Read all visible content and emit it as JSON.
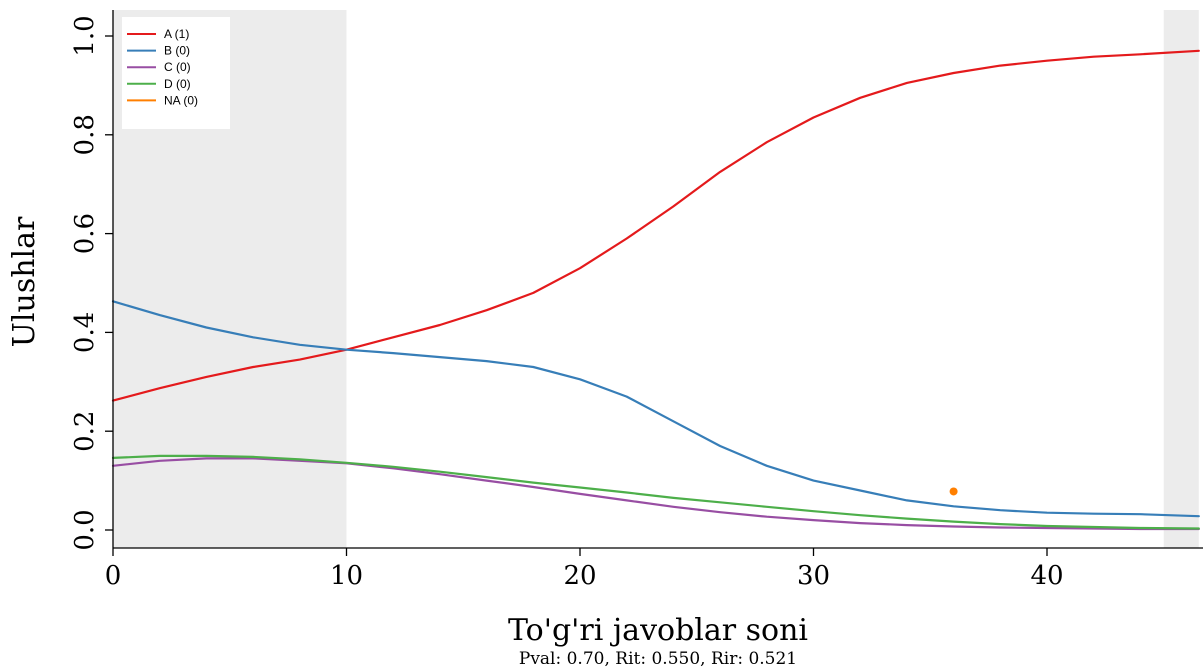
{
  "chart_data": {
    "type": "line",
    "xlabel": "To'g'ri javoblar soni",
    "ylabel": "Ulushlar",
    "subtitle": "Pval: 0.70, Rit: 0.550, Rir: 0.521",
    "xlim": [
      0,
      46.5
    ],
    "ylim": [
      -0.035,
      1.03
    ],
    "x_ticks": [
      0,
      10,
      20,
      30,
      40
    ],
    "y_ticks": [
      0.0,
      0.2,
      0.4,
      0.6,
      0.8,
      1.0
    ],
    "y_tick_labels": [
      "0.0",
      "0.2",
      "0.4",
      "0.6",
      "0.8",
      "1.0"
    ],
    "shaded_x_ranges": [
      [
        0,
        10
      ],
      [
        45,
        46.5
      ]
    ],
    "grid": false,
    "legend_position": "top-left",
    "x": [
      0,
      2,
      4,
      6,
      8,
      10,
      12,
      14,
      16,
      18,
      20,
      22,
      24,
      26,
      28,
      30,
      32,
      34,
      36,
      38,
      40,
      42,
      44,
      46.5
    ],
    "series": [
      {
        "name": "A (1)",
        "color": "#e41a1c",
        "values": [
          0.262,
          0.287,
          0.31,
          0.33,
          0.345,
          0.365,
          0.39,
          0.415,
          0.445,
          0.48,
          0.53,
          0.59,
          0.655,
          0.725,
          0.785,
          0.835,
          0.875,
          0.905,
          0.925,
          0.94,
          0.95,
          0.958,
          0.963,
          0.97
        ]
      },
      {
        "name": "B (0)",
        "color": "#377eb8",
        "values": [
          0.463,
          0.435,
          0.41,
          0.39,
          0.375,
          0.365,
          0.358,
          0.35,
          0.342,
          0.33,
          0.305,
          0.27,
          0.22,
          0.17,
          0.13,
          0.1,
          0.08,
          0.06,
          0.048,
          0.04,
          0.035,
          0.033,
          0.032,
          0.028
        ]
      },
      {
        "name": "C (0)",
        "color": "#984ea3",
        "values": [
          0.13,
          0.14,
          0.145,
          0.145,
          0.14,
          0.135,
          0.125,
          0.113,
          0.1,
          0.087,
          0.073,
          0.06,
          0.047,
          0.036,
          0.027,
          0.02,
          0.014,
          0.01,
          0.007,
          0.005,
          0.004,
          0.003,
          0.002,
          0.002
        ]
      },
      {
        "name": "D (0)",
        "color": "#4daf4a",
        "values": [
          0.146,
          0.15,
          0.15,
          0.148,
          0.143,
          0.136,
          0.128,
          0.118,
          0.107,
          0.096,
          0.086,
          0.076,
          0.065,
          0.056,
          0.047,
          0.038,
          0.03,
          0.023,
          0.017,
          0.012,
          0.008,
          0.006,
          0.004,
          0.003
        ]
      },
      {
        "name": "NA (0)",
        "color": "#ff7f00",
        "points": [
          [
            36,
            0.078
          ]
        ]
      }
    ]
  }
}
